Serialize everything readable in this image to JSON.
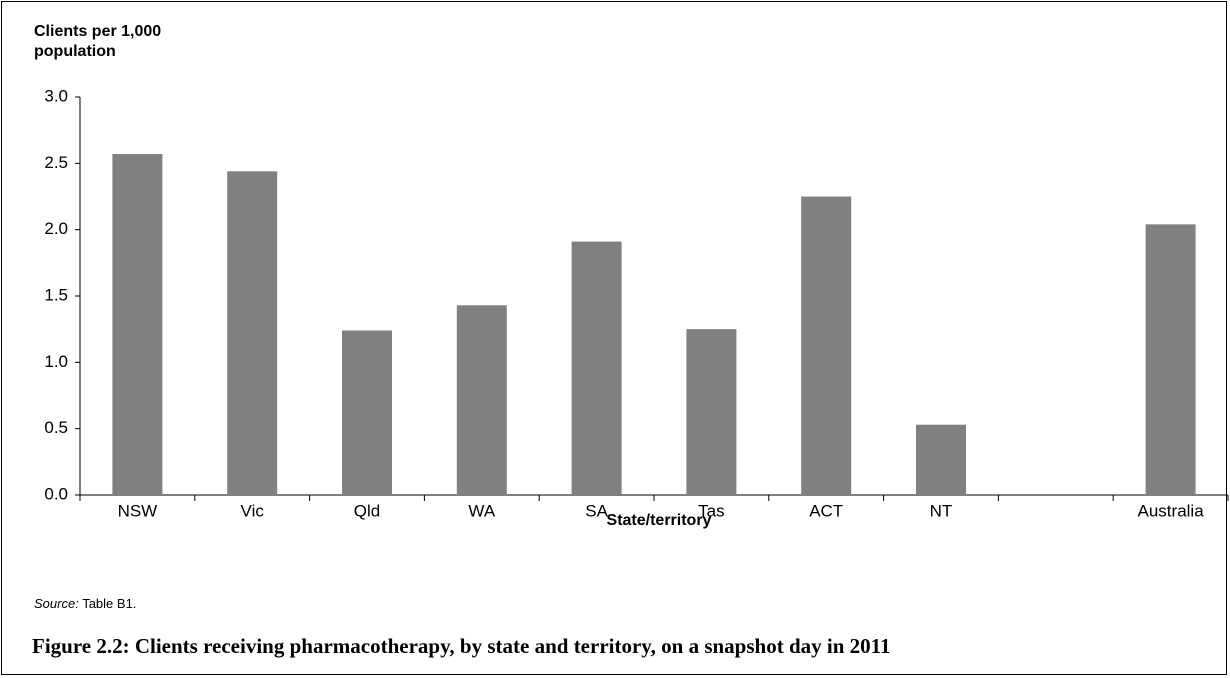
{
  "chart_data": {
    "type": "bar",
    "y_axis_label": "Clients per 1,000 population",
    "x_axis_label": "State/territory",
    "categories": [
      "NSW",
      "Vic",
      "Qld",
      "WA",
      "SA",
      "Tas",
      "ACT",
      "NT",
      null,
      "Australia"
    ],
    "values": [
      2.57,
      2.44,
      1.24,
      1.43,
      1.91,
      1.25,
      2.25,
      0.53,
      null,
      2.04
    ],
    "color": "#808080",
    "ylim": [
      0,
      3
    ],
    "yticks": [
      {
        "value": 0,
        "label": "0.0"
      },
      {
        "value": 0.5,
        "label": "0.5"
      },
      {
        "value": 1,
        "label": "1.0"
      },
      {
        "value": 1.5,
        "label": "1.5"
      },
      {
        "value": 2,
        "label": "2.0"
      },
      {
        "value": 2.5,
        "label": "2.5"
      },
      {
        "value": 3,
        "label": "3.0"
      }
    ],
    "grid": false,
    "source_label": "Source:",
    "source_text": "Table B1.",
    "caption": "Figure 2.2: Clients receiving pharmacotherapy, by state and territory, on a snapshot day in 2011"
  }
}
